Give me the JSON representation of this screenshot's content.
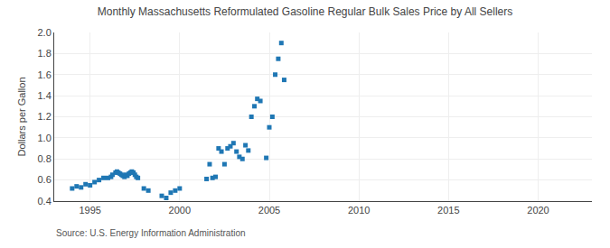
{
  "chart_data": {
    "type": "scatter",
    "title": "Monthly Massachusetts Reformulated Gasoline Regular Bulk Sales Price by All Sellers",
    "ylabel": "Dollars per Gallon",
    "annotations": [
      "Source: U.S. Energy Information Administration"
    ],
    "marker": "square",
    "grid": true,
    "xlim": [
      1993.0,
      2023.0
    ],
    "ylim": [
      0.4,
      2.0
    ],
    "xticks": [
      1995,
      2000,
      2005,
      2010,
      2015,
      2020
    ],
    "yticks": [
      0.4,
      0.6,
      0.8,
      {
        "value": 1.0,
        "label": "1.0"
      },
      1.2,
      1.4,
      1.6,
      1.8,
      {
        "value": 2.0,
        "label": "2.0"
      }
    ],
    "x": [
      1994.0,
      1994.25,
      1994.5,
      1994.75,
      1995.0,
      1995.25,
      1995.5,
      1995.75,
      1996.0,
      1996.17,
      1996.25,
      1996.42,
      1996.5,
      1996.58,
      1996.67,
      1996.75,
      1996.83,
      1996.92,
      1997.0,
      1997.08,
      1997.17,
      1997.25,
      1997.33,
      1997.42,
      1997.5,
      1997.58,
      1997.67,
      1998.0,
      1998.25,
      1999.0,
      1999.25,
      1999.5,
      1999.75,
      2000.0,
      2001.5,
      2001.67,
      2001.83,
      2002.0,
      2002.17,
      2002.33,
      2002.5,
      2002.67,
      2002.83,
      2003.0,
      2003.17,
      2003.33,
      2003.5,
      2003.67,
      2003.83,
      2004.0,
      2004.17,
      2004.33,
      2004.5,
      2004.83,
      2005.0,
      2005.17,
      2005.33,
      2005.5,
      2005.67,
      2005.83
    ],
    "values": [
      0.52,
      0.54,
      0.53,
      0.56,
      0.55,
      0.58,
      0.6,
      0.62,
      0.62,
      0.63,
      0.65,
      0.67,
      0.68,
      0.67,
      0.66,
      0.65,
      0.64,
      0.63,
      0.65,
      0.64,
      0.66,
      0.67,
      0.68,
      0.67,
      0.65,
      0.63,
      0.62,
      0.52,
      0.5,
      0.45,
      0.43,
      0.48,
      0.5,
      0.52,
      0.61,
      0.75,
      0.62,
      0.63,
      0.9,
      0.87,
      0.75,
      0.9,
      0.92,
      0.95,
      0.87,
      0.82,
      0.8,
      0.93,
      0.88,
      1.2,
      1.3,
      1.37,
      1.35,
      0.81,
      1.1,
      1.2,
      1.6,
      1.75,
      1.9,
      1.55
    ]
  }
}
